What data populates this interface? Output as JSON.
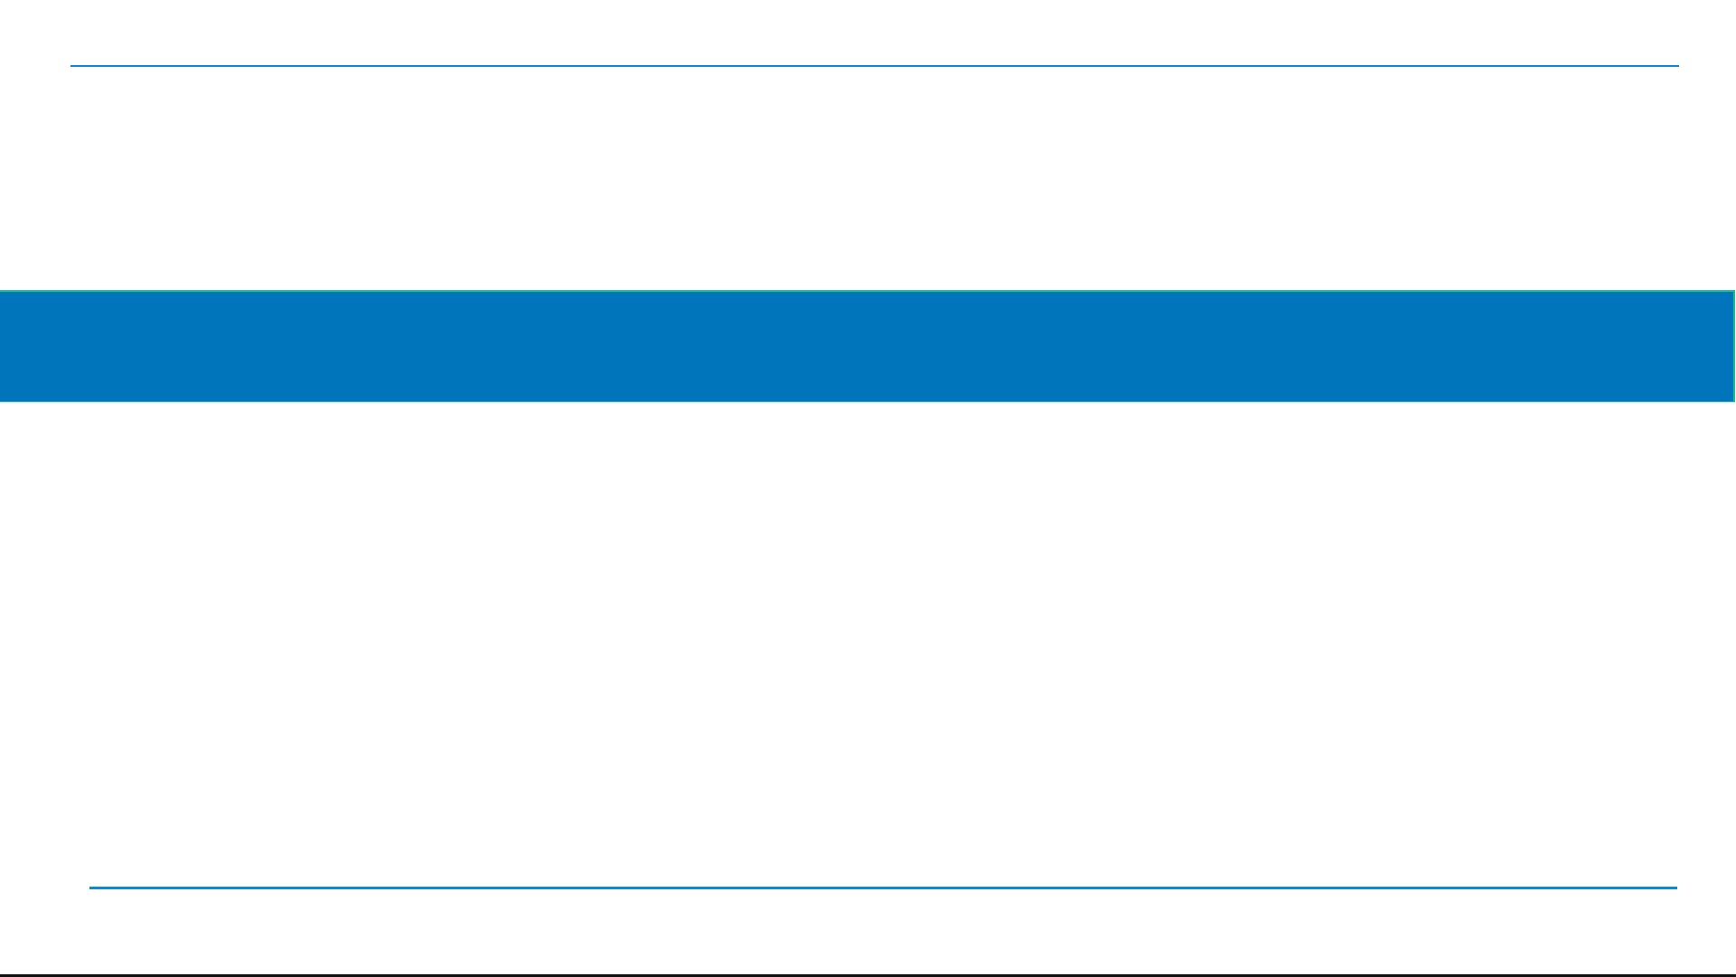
{
  "colors": {
    "rule": "#0a8ad6",
    "band": "#0075bc",
    "band_border": "#17c08a",
    "background": "#ffffff"
  }
}
